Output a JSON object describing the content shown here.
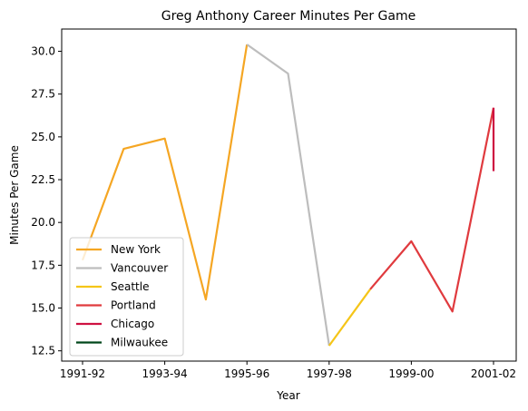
{
  "chart_data": {
    "type": "line",
    "title": "Greg Anthony Career Minutes Per Game",
    "xlabel": "Year",
    "ylabel": "Minutes Per Game",
    "x_tick_labels": [
      "1991-92",
      "1993-94",
      "1995-96",
      "1997-98",
      "1999-00",
      "2001-02"
    ],
    "y_ticks": [
      12.5,
      15.0,
      17.5,
      20.0,
      22.5,
      25.0,
      27.5,
      30.0
    ],
    "y_tick_labels": [
      "12.5",
      "15.0",
      "17.5",
      "20.0",
      "22.5",
      "25.0",
      "27.5",
      "30.0"
    ],
    "ylim": [
      11.9,
      31.3
    ],
    "grid": false,
    "legend_position": "lower-left",
    "series": [
      {
        "name": "New York",
        "color": "#f5a623",
        "points": [
          [
            "1991-92",
            17.8
          ],
          [
            "1992-93",
            24.3
          ],
          [
            "1993-94",
            24.9
          ],
          [
            "1994-95",
            15.5
          ],
          [
            "1995-96",
            30.4
          ]
        ]
      },
      {
        "name": "Vancouver",
        "color": "#bdbdbd",
        "points": [
          [
            "1995-96",
            30.4
          ],
          [
            "1996-97",
            28.7
          ],
          [
            "1997-98",
            12.8
          ]
        ]
      },
      {
        "name": "Seattle",
        "color": "#f5c518",
        "points": [
          [
            "1997-98",
            12.8
          ],
          [
            "1998-99",
            16.1
          ]
        ]
      },
      {
        "name": "Portland",
        "color": "#e03a3e",
        "points": [
          [
            "1998-99",
            16.1
          ],
          [
            "1999-00",
            18.9
          ],
          [
            "2000-01",
            14.8
          ],
          [
            "2001-02",
            26.7
          ]
        ]
      },
      {
        "name": "Chicago",
        "color": "#ce1141",
        "points": [
          [
            "2001-02",
            26.7
          ],
          [
            "2001-02",
            23.0
          ]
        ]
      },
      {
        "name": "Milwaukee",
        "color": "#00471b",
        "points": []
      }
    ]
  }
}
